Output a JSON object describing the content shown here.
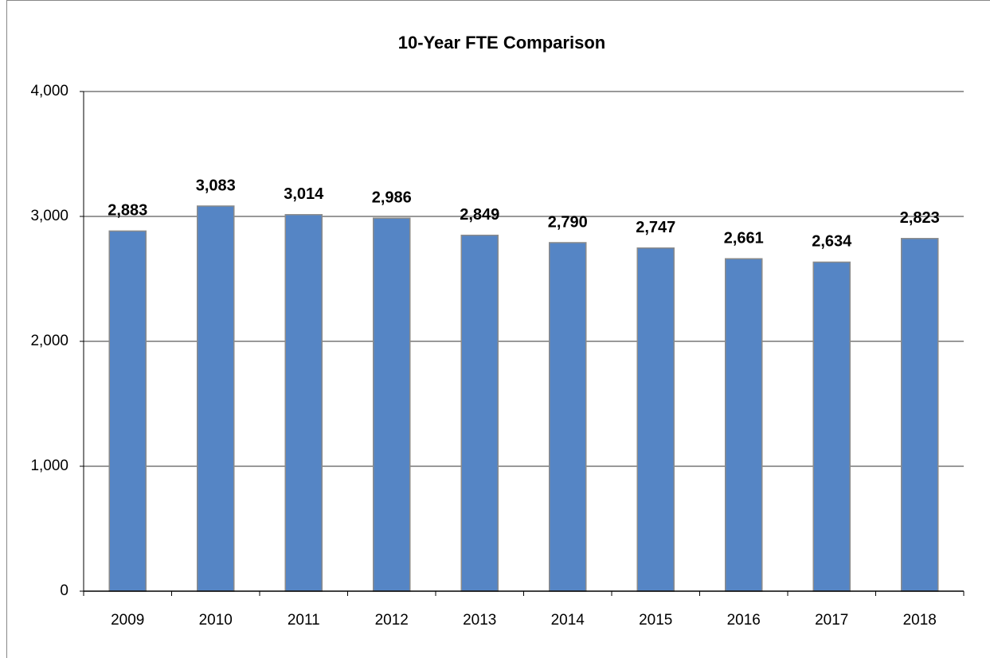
{
  "chart_data": {
    "type": "bar",
    "title": "10-Year FTE Comparison",
    "categories": [
      "2009",
      "2010",
      "2011",
      "2012",
      "2013",
      "2014",
      "2015",
      "2016",
      "2017",
      "2018"
    ],
    "values": [
      2883,
      3083,
      3014,
      2986,
      2849,
      2790,
      2747,
      2661,
      2634,
      2823
    ],
    "value_labels": [
      "2,883",
      "3,083",
      "3,014",
      "2,986",
      "2,849",
      "2,790",
      "2,747",
      "2,661",
      "2,634",
      "2,823"
    ],
    "color": "#5585c5",
    "ylim": [
      0,
      4000
    ],
    "yticks": [
      0,
      {
        "value": 1000,
        "label": "1,000"
      },
      {
        "value": 2000,
        "label": "2,000"
      },
      {
        "value": 3000,
        "label": "3,000"
      },
      {
        "value": 4000,
        "label": "4,000"
      }
    ],
    "grid": true
  }
}
